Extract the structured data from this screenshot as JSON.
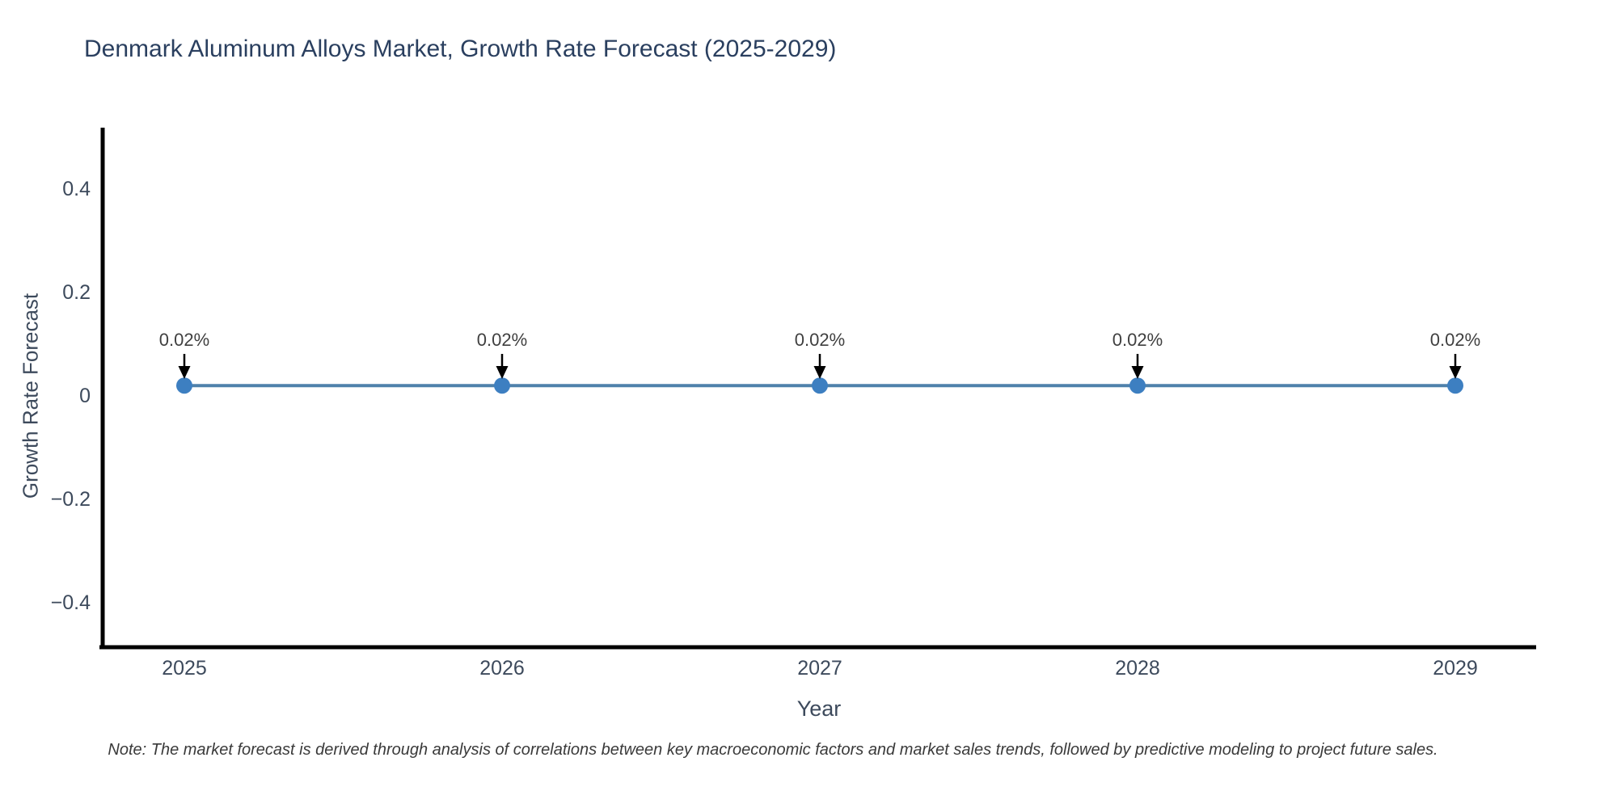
{
  "chart_data": {
    "type": "line",
    "title": "Denmark Aluminum Alloys Market, Growth Rate Forecast (2025-2029)",
    "xlabel": "Year",
    "ylabel": "Growth Rate Forecast",
    "x": [
      2025,
      2026,
      2027,
      2028,
      2029
    ],
    "x_tick_labels": [
      "2025",
      "2026",
      "2027",
      "2028",
      "2029"
    ],
    "series": [
      {
        "name": "Growth Rate Forecast",
        "values": [
          0.02,
          0.02,
          0.02,
          0.02,
          0.02
        ]
      }
    ],
    "point_labels": [
      "0.02%",
      "0.02%",
      "0.02%",
      "0.02%",
      "0.02%"
    ],
    "y_tick_labels": [
      "0.4",
      "0.2",
      "0",
      "−0.2",
      "−0.4"
    ],
    "y_tick_values": [
      0.4,
      0.2,
      0,
      -0.2,
      -0.4
    ],
    "ylim": [
      -0.49,
      0.52
    ],
    "grid": false,
    "legend_position": "none",
    "colors": {
      "line": "#4f81ab",
      "marker": "#3d7fc1",
      "axis_line": "#000000",
      "title_text": "#2a3f5f",
      "axis_text": "#3d4a5c",
      "annotation_text": "#3f3f3f",
      "arrow": "#000000",
      "background": "#ffffff"
    }
  },
  "note": "Note: The market forecast is derived through analysis of correlations between key macroeconomic factors and market sales trends, followed by predictive modeling to project future sales."
}
